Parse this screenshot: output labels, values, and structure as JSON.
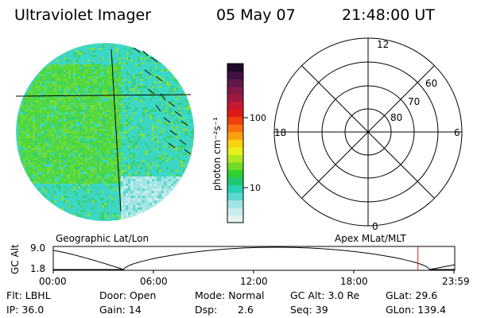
{
  "header": {
    "instrument": "Ultraviolet Imager",
    "date": "05 May 07",
    "time": "21:48:00 UT"
  },
  "colorbar": {
    "unit_label": "photon cm⁻²s⁻¹",
    "ticks": [
      "100",
      "10"
    ],
    "colors": [
      "#e6f2f2",
      "#c8ecec",
      "#a0e4e4",
      "#5ad8d0",
      "#28d0b4",
      "#20c870",
      "#30d030",
      "#70dc28",
      "#b0e820",
      "#e8f018",
      "#f8d010",
      "#f8a010",
      "#f87010",
      "#f04010",
      "#e01818",
      "#c81830",
      "#a01840",
      "#801848",
      "#601848",
      "#401040",
      "#200828"
    ]
  },
  "left_image": {
    "label": "Geographic Lat/Lon",
    "palette": [
      "#3ad8c8",
      "#40d4b8",
      "#5ad8c8",
      "#38d078",
      "#50d840",
      "#70dc38",
      "#80e040",
      "#a0e4e4",
      "#c8ecec"
    ]
  },
  "polar_plot": {
    "label": "Apex MLat/MLT",
    "mlt_labels": [
      "12",
      "18",
      "6",
      "0"
    ],
    "lat_labels": [
      "60",
      "70",
      "80"
    ]
  },
  "altitude_panel": {
    "ylabel": "GC Alt",
    "yticks": [
      "9.0",
      "1.8"
    ],
    "time_ticks": [
      "00:00",
      "06:00",
      "12:00",
      "18:00",
      "23:59"
    ],
    "current_marker_hour": 21.8
  },
  "footer": {
    "flt": "Flt: LBHL",
    "ip": "IP: 36.0",
    "door": "Door: Open",
    "gain": "Gain: 14",
    "mode": "Mode: Normal",
    "dsp_label": "Dsp:",
    "dsp_value": "2.6",
    "gc_alt": "GC Alt: 3.0 Re",
    "seq": "Seq: 39",
    "glat": "GLat:  29.6",
    "glon": "GLon: 139.4"
  }
}
